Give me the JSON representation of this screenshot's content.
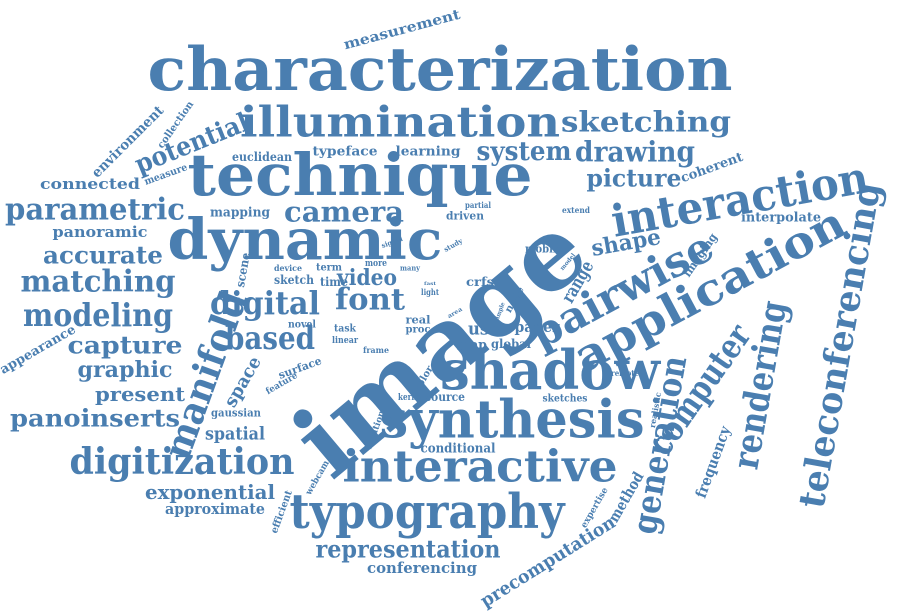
{
  "cloud": {
    "color": "#4a7eb0",
    "words": [
      {
        "id": "image",
        "text": "image"
      },
      {
        "id": "characterization",
        "text": "characterization"
      },
      {
        "id": "technique",
        "text": "technique"
      },
      {
        "id": "dynamic",
        "text": "dynamic"
      },
      {
        "id": "illumination",
        "text": "illumination"
      },
      {
        "id": "interaction",
        "text": "interaction"
      },
      {
        "id": "pairwise",
        "text": "pairwise"
      },
      {
        "id": "application",
        "text": "application"
      },
      {
        "id": "teleconferencing",
        "text": "teleconferencing"
      },
      {
        "id": "shadow",
        "text": "shadow"
      },
      {
        "id": "synthesis",
        "text": "synthesis"
      },
      {
        "id": "interactive",
        "text": "interactive"
      },
      {
        "id": "typography",
        "text": "typography"
      },
      {
        "id": "digitization",
        "text": "digitization"
      },
      {
        "id": "manifold",
        "text": "manifold"
      },
      {
        "id": "rendering",
        "text": "rendering"
      },
      {
        "id": "computer",
        "text": "computer"
      },
      {
        "id": "generation",
        "text": "generation"
      },
      {
        "id": "sketching",
        "text": "sketching"
      },
      {
        "id": "drawing",
        "text": "drawing"
      },
      {
        "id": "system",
        "text": "system"
      },
      {
        "id": "picture",
        "text": "picture"
      },
      {
        "id": "camera",
        "text": "camera"
      },
      {
        "id": "parametric",
        "text": "parametric"
      },
      {
        "id": "matching",
        "text": "matching"
      },
      {
        "id": "modeling",
        "text": "modeling"
      },
      {
        "id": "potential",
        "text": "potential"
      },
      {
        "id": "accurate",
        "text": "accurate"
      },
      {
        "id": "capture",
        "text": "capture"
      },
      {
        "id": "graphic",
        "text": "graphic"
      },
      {
        "id": "present",
        "text": "present"
      },
      {
        "id": "panoinserts",
        "text": "panoinserts"
      },
      {
        "id": "digital",
        "text": "digital"
      },
      {
        "id": "based",
        "text": "based"
      },
      {
        "id": "font",
        "text": "font"
      },
      {
        "id": "video",
        "text": "video"
      },
      {
        "id": "shape",
        "text": "shape"
      },
      {
        "id": "spatial",
        "text": "spatial"
      },
      {
        "id": "representation",
        "text": "representation"
      },
      {
        "id": "exponential",
        "text": "exponential"
      },
      {
        "id": "approximate",
        "text": "approximate"
      },
      {
        "id": "conferencing",
        "text": "conferencing"
      },
      {
        "id": "precomputation",
        "text": "precomputation"
      },
      {
        "id": "frequency",
        "text": "frequency"
      },
      {
        "id": "method",
        "text": "method"
      },
      {
        "id": "range",
        "text": "range"
      },
      {
        "id": "space",
        "text": "space"
      },
      {
        "id": "measurement",
        "text": "measurement"
      },
      {
        "id": "environment",
        "text": "environment"
      },
      {
        "id": "connected",
        "text": "connected"
      },
      {
        "id": "panoramic",
        "text": "panoramic"
      },
      {
        "id": "appearance",
        "text": "appearance"
      },
      {
        "id": "mapping",
        "text": "mapping"
      },
      {
        "id": "coherent",
        "text": "coherent"
      },
      {
        "id": "interpolate",
        "text": "interpolate"
      },
      {
        "id": "euclidean",
        "text": "euclidean"
      },
      {
        "id": "typeface",
        "text": "typeface"
      },
      {
        "id": "learning",
        "text": "learning"
      },
      {
        "id": "conditional",
        "text": "conditional"
      },
      {
        "id": "imaging",
        "text": "imaging"
      },
      {
        "id": "collection",
        "text": "collection"
      },
      {
        "id": "measure",
        "text": "measure"
      },
      {
        "id": "scene",
        "text": "scene"
      },
      {
        "id": "sketch",
        "text": "sketch"
      },
      {
        "id": "time",
        "text": "time"
      },
      {
        "id": "term",
        "text": "term"
      },
      {
        "id": "device",
        "text": "device"
      },
      {
        "id": "gaussian",
        "text": "gaussian"
      },
      {
        "id": "surface",
        "text": "surface"
      },
      {
        "id": "feature",
        "text": "feature"
      },
      {
        "id": "novel",
        "text": "novel"
      },
      {
        "id": "task",
        "text": "task"
      },
      {
        "id": "linear",
        "text": "linear"
      },
      {
        "id": "frame",
        "text": "frame"
      },
      {
        "id": "user",
        "text": "user"
      },
      {
        "id": "paper",
        "text": "paper"
      },
      {
        "id": "map",
        "text": "map"
      },
      {
        "id": "global",
        "text": "global"
      },
      {
        "id": "crfs",
        "text": "crfs"
      },
      {
        "id": "real",
        "text": "real"
      },
      {
        "id": "proc",
        "text": "proc"
      },
      {
        "id": "node",
        "text": "node"
      },
      {
        "id": "mobile",
        "text": "mobile"
      },
      {
        "id": "driven",
        "text": "driven"
      },
      {
        "id": "partial",
        "text": "partial"
      },
      {
        "id": "extend",
        "text": "extend"
      },
      {
        "id": "remote",
        "text": "remote"
      },
      {
        "id": "realistic",
        "text": "realistic"
      },
      {
        "id": "kernel",
        "text": "kernel"
      },
      {
        "id": "source",
        "text": "source"
      },
      {
        "id": "sketches",
        "text": "sketches"
      },
      {
        "id": "color",
        "text": "color"
      },
      {
        "id": "location",
        "text": "location"
      },
      {
        "id": "webcam",
        "text": "webcam"
      },
      {
        "id": "efficient",
        "text": "efficient"
      },
      {
        "id": "expertise",
        "text": "expertise"
      },
      {
        "id": "more",
        "text": "more"
      },
      {
        "id": "signal",
        "text": "signal"
      },
      {
        "id": "many",
        "text": "many"
      },
      {
        "id": "light",
        "text": "light"
      },
      {
        "id": "fast",
        "text": "fast"
      },
      {
        "id": "study",
        "text": "study"
      },
      {
        "id": "model",
        "text": "model"
      },
      {
        "id": "area",
        "text": "area"
      },
      {
        "id": "simple",
        "text": "simple"
      }
    ]
  }
}
